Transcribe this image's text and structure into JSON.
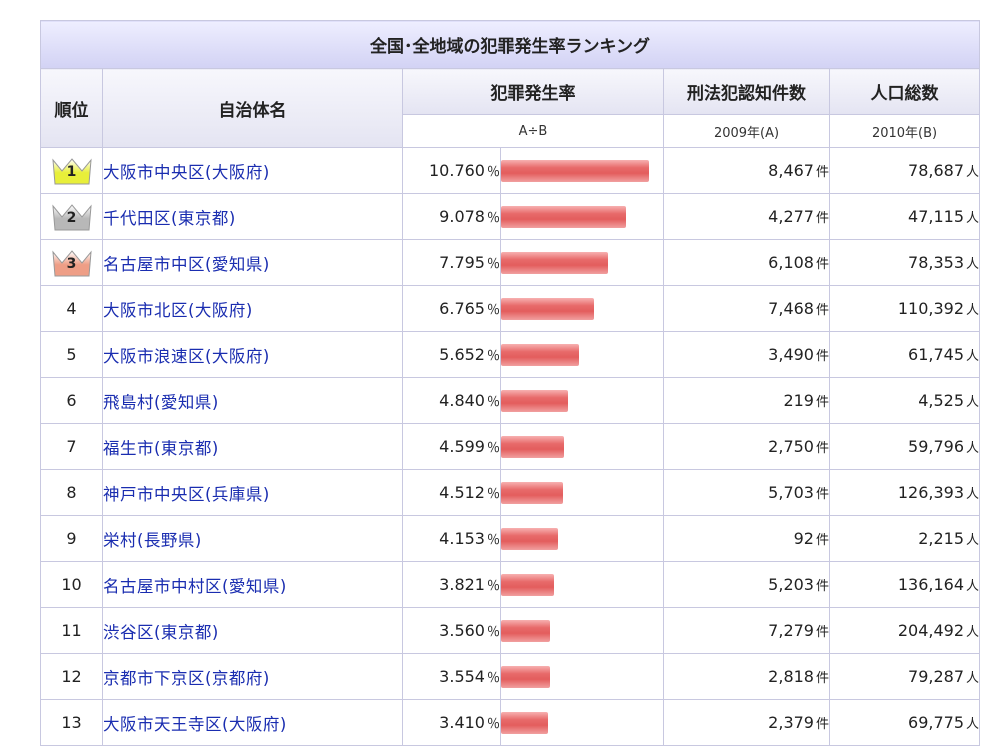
{
  "table": {
    "title": "全国･全地域の犯罪発生率ランキング",
    "headers": {
      "rank": "順位",
      "name": "自治体名",
      "rate": "犯罪発生率",
      "crimes": "刑法犯認知件数",
      "population": "人口総数"
    },
    "subheaders": {
      "rate": "A÷B",
      "crimes": "2009年(A)",
      "population": "2010年(B)"
    },
    "units": {
      "rate": "％",
      "crimes": "件",
      "population": "人"
    },
    "crown_colors": {
      "gold": "#e8ef3a",
      "silver": "#b8b8b8",
      "bronze": "#ee9e86"
    },
    "rows": [
      {
        "rank": "1",
        "name": "大阪市中央区(大阪府)",
        "rate": "10.760",
        "rate_value": 10.76,
        "crimes": "8,467",
        "population": "78,687",
        "crown": "gold"
      },
      {
        "rank": "2",
        "name": "千代田区(東京都)",
        "rate": "9.078",
        "rate_value": 9.078,
        "crimes": "4,277",
        "population": "47,115",
        "crown": "silver"
      },
      {
        "rank": "3",
        "name": "名古屋市中区(愛知県)",
        "rate": "7.795",
        "rate_value": 7.795,
        "crimes": "6,108",
        "population": "78,353",
        "crown": "bronze"
      },
      {
        "rank": "4",
        "name": "大阪市北区(大阪府)",
        "rate": "6.765",
        "rate_value": 6.765,
        "crimes": "7,468",
        "population": "110,392"
      },
      {
        "rank": "5",
        "name": "大阪市浪速区(大阪府)",
        "rate": "5.652",
        "rate_value": 5.652,
        "crimes": "3,490",
        "population": "61,745"
      },
      {
        "rank": "6",
        "name": "飛島村(愛知県)",
        "rate": "4.840",
        "rate_value": 4.84,
        "crimes": "219",
        "population": "4,525"
      },
      {
        "rank": "7",
        "name": "福生市(東京都)",
        "rate": "4.599",
        "rate_value": 4.599,
        "crimes": "2,750",
        "population": "59,796"
      },
      {
        "rank": "8",
        "name": "神戸市中央区(兵庫県)",
        "rate": "4.512",
        "rate_value": 4.512,
        "crimes": "5,703",
        "population": "126,393"
      },
      {
        "rank": "9",
        "name": "栄村(長野県)",
        "rate": "4.153",
        "rate_value": 4.153,
        "crimes": "92",
        "population": "2,215"
      },
      {
        "rank": "10",
        "name": "名古屋市中村区(愛知県)",
        "rate": "3.821",
        "rate_value": 3.821,
        "crimes": "5,203",
        "population": "136,164"
      },
      {
        "rank": "11",
        "name": "渋谷区(東京都)",
        "rate": "3.560",
        "rate_value": 3.56,
        "crimes": "7,279",
        "population": "204,492"
      },
      {
        "rank": "12",
        "name": "京都市下京区(京都府)",
        "rate": "3.554",
        "rate_value": 3.554,
        "crimes": "2,818",
        "population": "79,287"
      },
      {
        "rank": "13",
        "name": "大阪市天王寺区(大阪府)",
        "rate": "3.410",
        "rate_value": 3.41,
        "crimes": "2,379",
        "population": "69,775"
      }
    ]
  }
}
